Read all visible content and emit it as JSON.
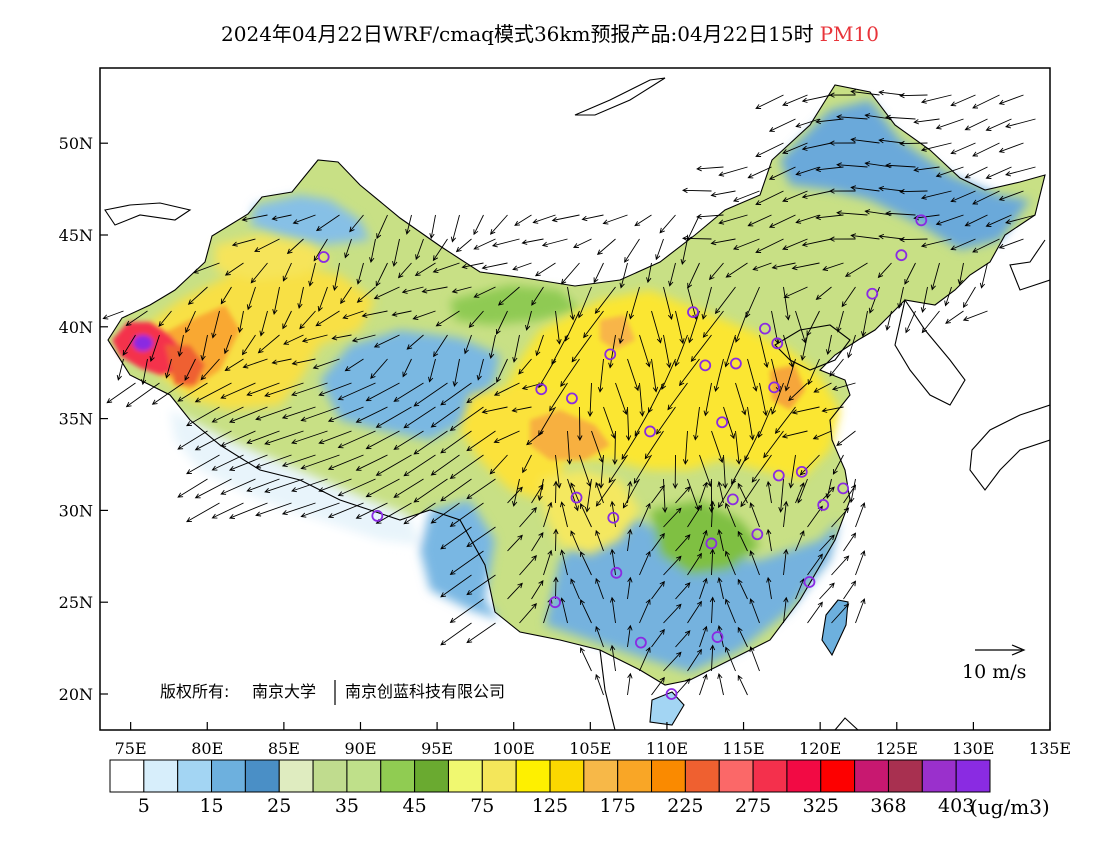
{
  "title": {
    "main": "2024年04月22日WRF/cmaq模式36km预报产品:04月22日15时",
    "species": "PM10"
  },
  "colors": {
    "species": "#e8343a",
    "station": "#8a2be2"
  },
  "axes": {
    "lat_ticks": [
      "50N",
      "45N",
      "40N",
      "35N",
      "30N",
      "25N",
      "20N"
    ],
    "lon_ticks": [
      "75E",
      "80E",
      "85E",
      "90E",
      "95E",
      "100E",
      "105E",
      "110E",
      "115E",
      "120E",
      "125E",
      "130E",
      "135E"
    ]
  },
  "copyright": {
    "label": "版权所有:",
    "org1": "南京大学",
    "org2": "南京创蓝科技有限公司"
  },
  "wind_scale": {
    "label": "10 m/s"
  },
  "legend": {
    "units": "(ug/m3)",
    "colors": [
      "#ffffff",
      "#d7eefb",
      "#a3d5f3",
      "#6db0de",
      "#4a8fc6",
      "#dfecc0",
      "#c0dc8e",
      "#bfe08a",
      "#90cc52",
      "#6aaa30",
      "#f0f870",
      "#f4e65a",
      "#fef000",
      "#fbd800",
      "#f7b848",
      "#f9a626",
      "#fa8a00",
      "#ef6030",
      "#fb6868",
      "#f4304c",
      "#f20a44",
      "#fd0000",
      "#c81870",
      "#a83050",
      "#9a30cc",
      "#8a2be2"
    ],
    "labels": [
      "5",
      "15",
      "25",
      "35",
      "45",
      "75",
      "125",
      "175",
      "225",
      "275",
      "325",
      "368",
      "403"
    ]
  },
  "stations": [
    {
      "lon": 87.6,
      "lat": 43.8
    },
    {
      "lon": 91.1,
      "lat": 29.7
    },
    {
      "lon": 101.8,
      "lat": 36.6
    },
    {
      "lon": 103.8,
      "lat": 36.1
    },
    {
      "lon": 106.3,
      "lat": 38.5
    },
    {
      "lon": 108.9,
      "lat": 34.3
    },
    {
      "lon": 111.7,
      "lat": 40.8
    },
    {
      "lon": 112.5,
      "lat": 37.9
    },
    {
      "lon": 114.5,
      "lat": 38.0
    },
    {
      "lon": 116.4,
      "lat": 39.9
    },
    {
      "lon": 117.2,
      "lat": 39.1
    },
    {
      "lon": 117.0,
      "lat": 36.7
    },
    {
      "lon": 113.6,
      "lat": 34.8
    },
    {
      "lon": 104.1,
      "lat": 30.7
    },
    {
      "lon": 106.5,
      "lat": 29.6
    },
    {
      "lon": 114.3,
      "lat": 30.6
    },
    {
      "lon": 117.3,
      "lat": 31.9
    },
    {
      "lon": 118.8,
      "lat": 32.1
    },
    {
      "lon": 121.5,
      "lat": 31.2
    },
    {
      "lon": 120.2,
      "lat": 30.3
    },
    {
      "lon": 112.9,
      "lat": 28.2
    },
    {
      "lon": 115.9,
      "lat": 28.7
    },
    {
      "lon": 119.3,
      "lat": 26.1
    },
    {
      "lon": 106.7,
      "lat": 26.6
    },
    {
      "lon": 102.7,
      "lat": 25.0
    },
    {
      "lon": 108.3,
      "lat": 22.8
    },
    {
      "lon": 113.3,
      "lat": 23.1
    },
    {
      "lon": 110.3,
      "lat": 20.0
    },
    {
      "lon": 123.4,
      "lat": 41.8
    },
    {
      "lon": 125.3,
      "lat": 43.9
    },
    {
      "lon": 126.6,
      "lat": 45.8
    }
  ]
}
